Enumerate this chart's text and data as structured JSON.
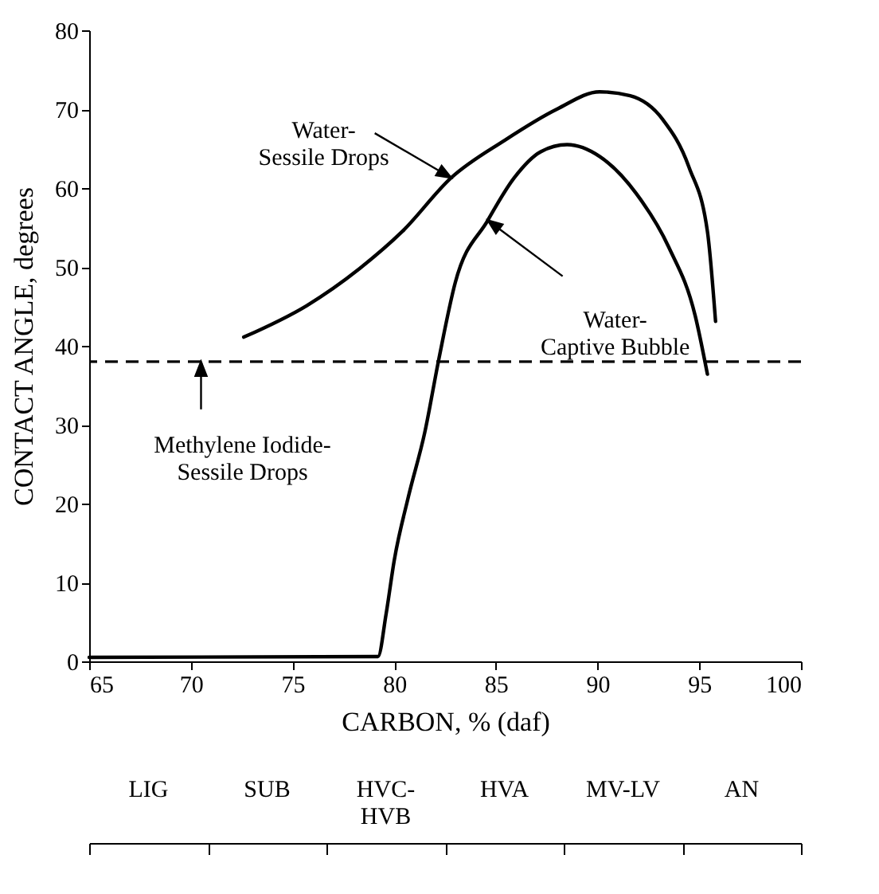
{
  "chart_data": [
    {
      "type": "line",
      "xlabel": "CARBON, % (daf)",
      "ylabel": "CONTACT ANGLE, degrees",
      "xlim": [
        65,
        100
      ],
      "xticks": [
        65,
        70,
        75,
        80,
        85,
        90,
        95,
        100
      ],
      "ylim": [
        0,
        80
      ],
      "yticks": [
        0,
        10,
        20,
        30,
        40,
        50,
        60,
        70,
        80
      ],
      "marker": "none",
      "line_style": "solid",
      "series": [
        {
          "name": "Water-Sessile Drops",
          "color": "#000000",
          "x": [
            72.6,
            75.7,
            78.3,
            80.4,
            82.8,
            85.4,
            88.0,
            90.1,
            91.6,
            93.2,
            94.5,
            95.4,
            95.8
          ],
          "values": [
            41.1,
            45.1,
            49.8,
            54.5,
            61.3,
            66.0,
            70.0,
            72.2,
            71.7,
            68.7,
            62.6,
            54.5,
            43.1
          ]
        },
        {
          "name": "Water-Captive Bubble",
          "color": "#000000",
          "x": [
            65,
            79.2,
            79.6,
            80.0,
            80.7,
            81.5,
            82.2,
            83.0,
            84.6,
            85.9,
            87.2,
            88.5,
            90.1,
            91.9,
            93.5,
            94.8,
            95.4
          ],
          "values": [
            0.5,
            0.6,
            6,
            12.8,
            20.9,
            29.0,
            38.4,
            48.0,
            55.9,
            61.3,
            64.6,
            65.5,
            64.0,
            59.3,
            52.5,
            43.8,
            36.4
          ]
        }
      ],
      "ref_lines": [
        {
          "axis": "y",
          "value": 38,
          "color": "#000000",
          "line_style": "dashed"
        }
      ],
      "annotations": [
        {
          "text": "Methylene Iodide-Sessile Drops",
          "x": 70.5,
          "y": 38
        }
      ]
    },
    {
      "type": "other",
      "categories": [
        "LIG",
        "SUB",
        "HVC-HVB",
        "HVA",
        "MV-LV",
        "AN"
      ]
    }
  ]
}
